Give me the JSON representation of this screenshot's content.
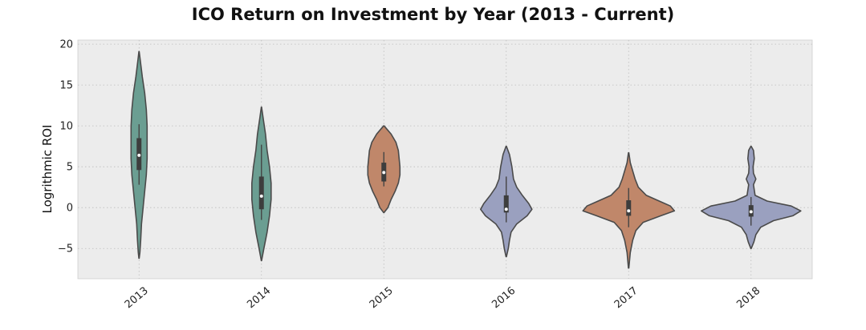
{
  "chart_data": {
    "type": "violin",
    "title": "ICO Return on Investment by Year (2013 - Current)",
    "xlabel": "",
    "ylabel": "Logrithmic ROI",
    "ylim": [
      -8.7,
      20.5
    ],
    "yticks": [
      {
        "value": 20,
        "label": "20"
      },
      {
        "value": 15,
        "label": "15"
      },
      {
        "value": 10,
        "label": "10"
      },
      {
        "value": 5,
        "label": "5"
      },
      {
        "value": 0,
        "label": "0"
      },
      {
        "value": -5,
        "label": "−5"
      }
    ],
    "grid": true,
    "categories": [
      "2013",
      "2014",
      "2015",
      "2016",
      "2017",
      "2018"
    ],
    "violins": [
      {
        "category": "2013",
        "color": "#6b9e92",
        "q1": 4.6,
        "median": 6.4,
        "q3": 8.5,
        "whisker_low": 2.8,
        "whisker_high": 10.2,
        "profile": [
          [
            19.1,
            0.2
          ],
          [
            18,
            1.5
          ],
          [
            16,
            4
          ],
          [
            14,
            7
          ],
          [
            12,
            9
          ],
          [
            10,
            10
          ],
          [
            8,
            10
          ],
          [
            6,
            10
          ],
          [
            4,
            9
          ],
          [
            2,
            7
          ],
          [
            0,
            5
          ],
          [
            -2,
            3
          ],
          [
            -4,
            2
          ],
          [
            -5.5,
            1
          ],
          [
            -6.2,
            0.2
          ]
        ]
      },
      {
        "category": "2014",
        "color": "#6b9e92",
        "q1": -0.2,
        "median": 1.4,
        "q3": 3.8,
        "whisker_low": -1.5,
        "whisker_high": 7.7,
        "profile": [
          [
            12.3,
            0.2
          ],
          [
            11,
            2
          ],
          [
            9,
            5
          ],
          [
            7,
            7
          ],
          [
            5,
            10
          ],
          [
            3,
            12
          ],
          [
            1,
            12
          ],
          [
            -1,
            10
          ],
          [
            -3,
            7
          ],
          [
            -5,
            3
          ],
          [
            -6.5,
            0.2
          ]
        ]
      },
      {
        "category": "2015",
        "color": "#c0876a",
        "q1": 3.2,
        "median": 4.3,
        "q3": 5.5,
        "whisker_low": 2.6,
        "whisker_high": 6.8,
        "profile": [
          [
            10,
            0.3
          ],
          [
            9,
            9
          ],
          [
            8,
            15
          ],
          [
            7,
            18
          ],
          [
            6,
            19
          ],
          [
            5,
            20
          ],
          [
            4,
            20
          ],
          [
            3,
            18
          ],
          [
            2,
            14
          ],
          [
            1,
            9
          ],
          [
            0,
            5
          ],
          [
            -0.6,
            0.3
          ]
        ]
      },
      {
        "category": "2016",
        "color": "#9aa0bf",
        "q1": -0.6,
        "median": -0.2,
        "q3": 1.5,
        "whisker_low": -1.8,
        "whisker_high": 3.8,
        "profile": [
          [
            7.5,
            0.3
          ],
          [
            6.5,
            4
          ],
          [
            5,
            7
          ],
          [
            3.5,
            9
          ],
          [
            2.5,
            13
          ],
          [
            1.5,
            20
          ],
          [
            0.5,
            28
          ],
          [
            -0.2,
            32
          ],
          [
            -1,
            26
          ],
          [
            -2,
            13
          ],
          [
            -3,
            6
          ],
          [
            -4,
            4
          ],
          [
            -5,
            2.5
          ],
          [
            -6,
            0.3
          ]
        ]
      },
      {
        "category": "2017",
        "color": "#c0876a",
        "q1": -1,
        "median": -0.4,
        "q3": 0.9,
        "whisker_low": -2.4,
        "whisker_high": 2.4,
        "profile": [
          [
            6.7,
            0.3
          ],
          [
            5.5,
            2
          ],
          [
            4.5,
            5
          ],
          [
            3.5,
            8
          ],
          [
            2.5,
            12
          ],
          [
            1.5,
            22
          ],
          [
            0.8,
            38
          ],
          [
            0.2,
            52
          ],
          [
            -0.4,
            57
          ],
          [
            -1,
            40
          ],
          [
            -1.8,
            18
          ],
          [
            -2.8,
            9
          ],
          [
            -4,
            5
          ],
          [
            -5.5,
            2
          ],
          [
            -7.4,
            0.3
          ]
        ]
      },
      {
        "category": "2018",
        "color": "#9aa0bf",
        "q1": -1.1,
        "median": -0.5,
        "q3": 0.3,
        "whisker_low": -2.2,
        "whisker_high": 1.3,
        "profile": [
          [
            7.5,
            0.3
          ],
          [
            7,
            3
          ],
          [
            6,
            4
          ],
          [
            5,
            2.5
          ],
          [
            4.2,
            3
          ],
          [
            3.5,
            6
          ],
          [
            2.8,
            3
          ],
          [
            1.5,
            5
          ],
          [
            0.8,
            20
          ],
          [
            0.2,
            50
          ],
          [
            -0.4,
            62
          ],
          [
            -1,
            52
          ],
          [
            -1.6,
            28
          ],
          [
            -2.4,
            12
          ],
          [
            -3.3,
            6
          ],
          [
            -4.2,
            3.5
          ],
          [
            -5,
            0.3
          ]
        ]
      }
    ]
  }
}
